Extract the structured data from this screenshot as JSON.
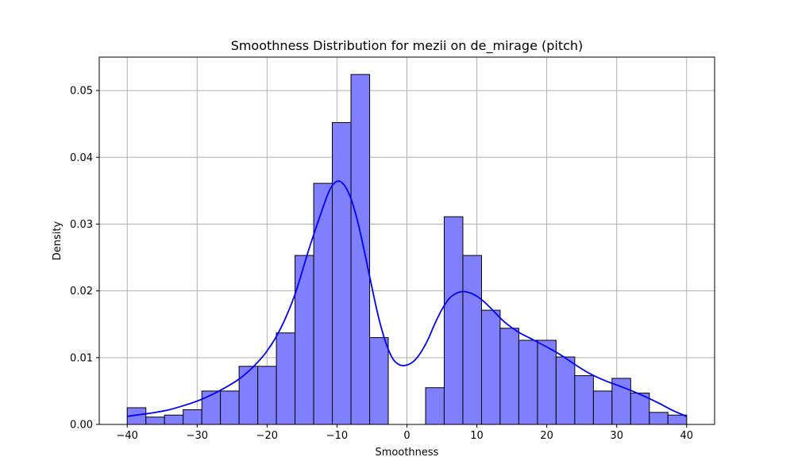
{
  "chart_data": {
    "type": "bar",
    "title": "Smoothness Distribution for mezii on de_mirage (pitch)",
    "xlabel": "Smoothness",
    "ylabel": "Density",
    "xlim": [
      -44,
      44
    ],
    "ylim": [
      0,
      0.055
    ],
    "xticks": [
      -40,
      -30,
      -20,
      -10,
      0,
      10,
      20,
      30,
      40
    ],
    "xtick_labels": [
      "−40",
      "−30",
      "−20",
      "−10",
      "0",
      "10",
      "20",
      "30",
      "40"
    ],
    "yticks": [
      0.0,
      0.01,
      0.02,
      0.03,
      0.04,
      0.05
    ],
    "ytick_labels": [
      "0.00",
      "0.01",
      "0.02",
      "0.03",
      "0.04",
      "0.05"
    ],
    "grid": true,
    "bar_color": "#8080ff",
    "bar_edge_color": "#000000",
    "kde_color": "#0000ff",
    "bins": [
      {
        "x0": -40.0,
        "x1": -37.33,
        "density": 0.0025
      },
      {
        "x0": -37.33,
        "x1": -34.67,
        "density": 0.0011
      },
      {
        "x0": -34.67,
        "x1": -32.0,
        "density": 0.0014
      },
      {
        "x0": -32.0,
        "x1": -29.33,
        "density": 0.0022
      },
      {
        "x0": -29.33,
        "x1": -26.67,
        "density": 0.005
      },
      {
        "x0": -26.67,
        "x1": -24.0,
        "density": 0.005
      },
      {
        "x0": -24.0,
        "x1": -21.33,
        "density": 0.0087
      },
      {
        "x0": -21.33,
        "x1": -18.67,
        "density": 0.0087
      },
      {
        "x0": -18.67,
        "x1": -16.0,
        "density": 0.0137
      },
      {
        "x0": -16.0,
        "x1": -13.33,
        "density": 0.0253
      },
      {
        "x0": -13.33,
        "x1": -10.67,
        "density": 0.0361
      },
      {
        "x0": -10.67,
        "x1": -8.0,
        "density": 0.0452
      },
      {
        "x0": -8.0,
        "x1": -5.33,
        "density": 0.0524
      },
      {
        "x0": -5.33,
        "x1": -2.67,
        "density": 0.013
      },
      {
        "x0": -2.67,
        "x1": 0.0,
        "density": 0.0
      },
      {
        "x0": 0.0,
        "x1": 2.67,
        "density": 0.0
      },
      {
        "x0": 2.67,
        "x1": 5.33,
        "density": 0.0055
      },
      {
        "x0": 5.33,
        "x1": 8.0,
        "density": 0.0311
      },
      {
        "x0": 8.0,
        "x1": 10.67,
        "density": 0.0253
      },
      {
        "x0": 10.67,
        "x1": 13.33,
        "density": 0.0171
      },
      {
        "x0": 13.33,
        "x1": 16.0,
        "density": 0.0144
      },
      {
        "x0": 16.0,
        "x1": 18.67,
        "density": 0.0126
      },
      {
        "x0": 18.67,
        "x1": 21.33,
        "density": 0.0126
      },
      {
        "x0": 21.33,
        "x1": 24.0,
        "density": 0.0101
      },
      {
        "x0": 24.0,
        "x1": 26.67,
        "density": 0.0073
      },
      {
        "x0": 26.67,
        "x1": 29.33,
        "density": 0.005
      },
      {
        "x0": 29.33,
        "x1": 32.0,
        "density": 0.0069
      },
      {
        "x0": 32.0,
        "x1": 34.67,
        "density": 0.0047
      },
      {
        "x0": 34.67,
        "x1": 37.33,
        "density": 0.0018
      },
      {
        "x0": 37.33,
        "x1": 40.0,
        "density": 0.0014
      }
    ],
    "kde": {
      "x": [
        -40,
        -38,
        -36,
        -34,
        -32,
        -30,
        -28,
        -26,
        -24,
        -22,
        -20,
        -18,
        -16,
        -14,
        -12,
        -11,
        -10,
        -9,
        -8,
        -7,
        -6,
        -5,
        -4,
        -3,
        -2,
        -1,
        0,
        1,
        2,
        3,
        4,
        5,
        6,
        7,
        8,
        9,
        10,
        11,
        12,
        14,
        16,
        18,
        20,
        22,
        24,
        26,
        28,
        30,
        32,
        34,
        36,
        38,
        40
      ],
      "y": [
        0.0012,
        0.0015,
        0.0018,
        0.0022,
        0.0028,
        0.0035,
        0.0044,
        0.0055,
        0.0068,
        0.0086,
        0.011,
        0.0145,
        0.0195,
        0.0263,
        0.0325,
        0.0352,
        0.0364,
        0.0359,
        0.0338,
        0.0302,
        0.0255,
        0.0205,
        0.0158,
        0.0122,
        0.0098,
        0.0089,
        0.0089,
        0.0095,
        0.0108,
        0.0127,
        0.0151,
        0.0172,
        0.0188,
        0.0196,
        0.0199,
        0.0197,
        0.0192,
        0.0184,
        0.0174,
        0.0153,
        0.0138,
        0.0127,
        0.0116,
        0.0104,
        0.009,
        0.0077,
        0.0067,
        0.0059,
        0.0051,
        0.0042,
        0.0032,
        0.0021,
        0.0012
      ]
    }
  }
}
